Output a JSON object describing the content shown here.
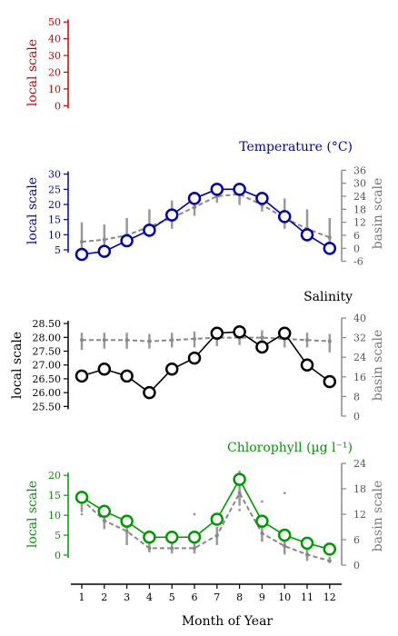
{
  "figure": {
    "xlabel": "Month of Year",
    "months": [
      "1",
      "2",
      "3",
      "4",
      "5",
      "6",
      "7",
      "8",
      "9",
      "10",
      "11",
      "12"
    ]
  },
  "chart_data": [
    {
      "type": "line",
      "title": "",
      "ylabel_left": "local scale",
      "ylabel_right": "",
      "color": "#cc0000",
      "left_axis": {
        "ticks": [
          0,
          10,
          20,
          30,
          40,
          50
        ],
        "range": [
          -2,
          55
        ]
      },
      "right_axis": null,
      "series": []
    },
    {
      "type": "line",
      "title": "Temperature (°C)",
      "ylabel_left": "local scale",
      "ylabel_right": "basin scale",
      "color": "#0000aa",
      "left_axis": {
        "ticks": [
          5,
          10,
          15,
          20,
          25,
          30
        ],
        "range": [
          0.5,
          32
        ]
      },
      "right_axis": {
        "ticks": [
          -6,
          0,
          6,
          12,
          18,
          24,
          30,
          36
        ],
        "range": [
          -7,
          37
        ]
      },
      "x": [
        1,
        2,
        3,
        4,
        5,
        6,
        7,
        8,
        9,
        10,
        11,
        12
      ],
      "local": [
        3.5,
        4.5,
        8,
        11.5,
        16.5,
        22,
        25,
        25,
        22,
        16,
        10,
        5.5
      ],
      "basin": [
        3,
        4,
        6,
        10,
        14,
        19,
        24,
        25,
        20,
        14,
        9,
        5
      ],
      "basin_range_low": [
        -3,
        -1,
        2,
        5,
        9,
        15,
        21,
        20,
        17,
        9,
        3,
        -1
      ],
      "basin_range_high": [
        12,
        11,
        14,
        18,
        22,
        26,
        28,
        28,
        26,
        23,
        18,
        14
      ]
    },
    {
      "type": "line",
      "title": "Salinity",
      "ylabel_left": "local scale",
      "ylabel_right": "basin scale",
      "color": "#000000",
      "left_axis": {
        "ticks": [
          "25.50",
          "26.00",
          "26.50",
          "27.00",
          "27.50",
          "28.00",
          "28.50"
        ],
        "range": [
          25.15,
          28.7
        ]
      },
      "right_axis": {
        "ticks": [
          0,
          8,
          16,
          24,
          32,
          40
        ],
        "range": [
          0,
          40
        ]
      },
      "x": [
        1,
        2,
        3,
        4,
        5,
        6,
        7,
        8,
        9,
        10,
        11,
        12
      ],
      "local": [
        26.6,
        26.85,
        26.6,
        26.0,
        26.85,
        27.25,
        28.15,
        28.2,
        27.65,
        28.15,
        27.0,
        26.4
      ],
      "basin": [
        31,
        31,
        31,
        30.5,
        31,
        31.5,
        32,
        32,
        32,
        31.5,
        31,
        30.5
      ],
      "basin_range_low": [
        27,
        27.5,
        27.5,
        27.5,
        28,
        28,
        28.5,
        29,
        28.5,
        28,
        28,
        26
      ],
      "basin_range_high": [
        34,
        34,
        34,
        33.5,
        34,
        34.5,
        35,
        35,
        35,
        34.5,
        34,
        33.5
      ]
    },
    {
      "type": "line",
      "title": "Chlorophyll (µg l⁻¹)",
      "ylabel_left": "local scale",
      "ylabel_right": "basin scale",
      "color": "#009900",
      "left_axis": {
        "ticks": [
          0,
          5,
          10,
          15,
          20
        ],
        "range": [
          -2.5,
          23
        ]
      },
      "right_axis": {
        "ticks": [
          0,
          6,
          12,
          18,
          24
        ],
        "range": [
          0,
          24
        ]
      },
      "x": [
        1,
        2,
        3,
        4,
        5,
        6,
        7,
        8,
        9,
        10,
        11,
        12
      ],
      "local": [
        14.5,
        11,
        8.5,
        4.5,
        4.5,
        4.5,
        9,
        19,
        8.5,
        5,
        3,
        1.5
      ],
      "basin": [
        15.5,
        10.5,
        8,
        4,
        4,
        4,
        7,
        17,
        7.5,
        4.5,
        2.5,
        1
      ],
      "basin_range_low": [
        12.5,
        8.5,
        5,
        3,
        3,
        3,
        5,
        14,
        5.5,
        2.5,
        1,
        0.5
      ],
      "basin_range_high": [
        17,
        13,
        9.5,
        6,
        6,
        6,
        9,
        19,
        10,
        7,
        4,
        2
      ],
      "scatter": [
        [
          1,
          12
        ],
        [
          2,
          10
        ],
        [
          3,
          9
        ],
        [
          3,
          5
        ],
        [
          4,
          4
        ],
        [
          5,
          3
        ],
        [
          6,
          3
        ],
        [
          6,
          12
        ],
        [
          7,
          5
        ],
        [
          8,
          22
        ],
        [
          8,
          13
        ],
        [
          9,
          15
        ],
        [
          9,
          6
        ],
        [
          10,
          17
        ],
        [
          10,
          4
        ],
        [
          11,
          2
        ],
        [
          12,
          1
        ]
      ]
    }
  ]
}
